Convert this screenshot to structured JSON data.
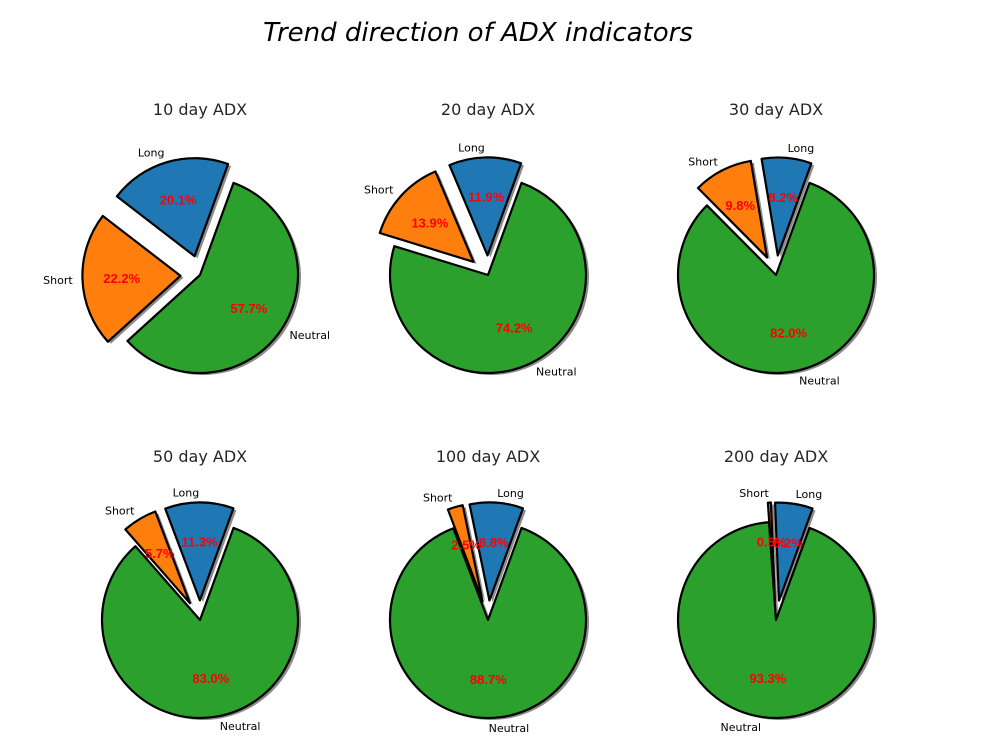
{
  "figure": {
    "title": "Trend direction of ADX indicators"
  },
  "chart_data": [
    {
      "type": "pie",
      "title": "10 day ADX",
      "labels": [
        "Long",
        "Short",
        "Neutral"
      ],
      "values": [
        20.1,
        22.2,
        57.7
      ],
      "value_labels": [
        "20.1%",
        "22.2%",
        "57.7%"
      ],
      "explode": [
        0.2,
        0.2,
        0
      ],
      "colors": [
        "#1f77b4",
        "#ff7f0e",
        "#2ca02c"
      ]
    },
    {
      "type": "pie",
      "title": "20 day ADX",
      "labels": [
        "Long",
        "Short",
        "Neutral"
      ],
      "values": [
        11.9,
        13.9,
        74.2
      ],
      "value_labels": [
        "11.9%",
        "13.9%",
        "74.2%"
      ],
      "explode": [
        0.2,
        0.2,
        0
      ],
      "colors": [
        "#1f77b4",
        "#ff7f0e",
        "#2ca02c"
      ]
    },
    {
      "type": "pie",
      "title": "30 day ADX",
      "labels": [
        "Long",
        "Short",
        "Neutral"
      ],
      "values": [
        8.2,
        9.8,
        82.0
      ],
      "value_labels": [
        "8.2%",
        "9.8%",
        "82.0%"
      ],
      "explode": [
        0.2,
        0.2,
        0
      ],
      "colors": [
        "#1f77b4",
        "#ff7f0e",
        "#2ca02c"
      ]
    },
    {
      "type": "pie",
      "title": "50 day ADX",
      "labels": [
        "Long",
        "Short",
        "Neutral"
      ],
      "values": [
        11.3,
        5.7,
        83.0
      ],
      "value_labels": [
        "11.3%",
        "5.7%",
        "83.0%"
      ],
      "explode": [
        0.2,
        0.2,
        0
      ],
      "colors": [
        "#1f77b4",
        "#ff7f0e",
        "#2ca02c"
      ]
    },
    {
      "type": "pie",
      "title": "100 day ADX",
      "labels": [
        "Long",
        "Short",
        "Neutral"
      ],
      "values": [
        8.8,
        2.5,
        88.7
      ],
      "value_labels": [
        "8.8%",
        "2.5%",
        "88.7%"
      ],
      "explode": [
        0.2,
        0.2,
        0
      ],
      "colors": [
        "#1f77b4",
        "#ff7f0e",
        "#2ca02c"
      ]
    },
    {
      "type": "pie",
      "title": "200 day ADX",
      "labels": [
        "Long",
        "Short",
        "Neutral"
      ],
      "values": [
        6.2,
        0.5,
        93.3
      ],
      "value_labels": [
        "6.2%",
        "0.5%",
        "93.3%"
      ],
      "explode": [
        0.2,
        0.2,
        0
      ],
      "colors": [
        "#1f77b4",
        "#ff7f0e",
        "#2ca02c"
      ]
    }
  ]
}
